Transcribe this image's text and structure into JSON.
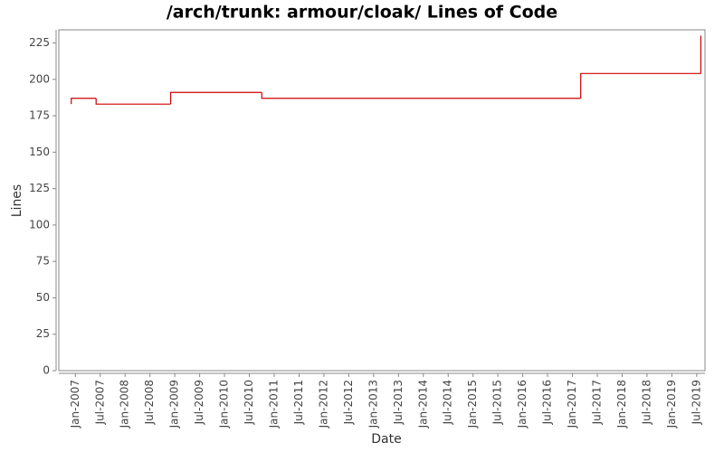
{
  "chart_data": {
    "type": "step-line",
    "title": "/arch/trunk: armour/cloak/ Lines of Code",
    "x_label": "Date",
    "y_label": "Lines",
    "x": [
      "2006-12",
      "2006-12",
      "2007-06",
      "2008-12",
      "2010-10",
      "2017-03",
      "2019-08"
    ],
    "series": [
      {
        "color": "#cc0000",
        "values": [
          183,
          187,
          183,
          191,
          187,
          204,
          230
        ]
      }
    ],
    "xlim": [
      "2006-09",
      "2019-09"
    ],
    "xticks": [
      {
        "value": "2007-01",
        "label": "Jan-2007"
      },
      {
        "value": "2007-07",
        "label": "Jul-2007"
      },
      {
        "value": "2008-01",
        "label": "Jan-2008"
      },
      {
        "value": "2008-07",
        "label": "Jul-2008"
      },
      {
        "value": "2009-01",
        "label": "Jan-2009"
      },
      {
        "value": "2009-07",
        "label": "Jul-2009"
      },
      {
        "value": "2010-01",
        "label": "Jan-2010"
      },
      {
        "value": "2010-07",
        "label": "Jul-2010"
      },
      {
        "value": "2011-01",
        "label": "Jan-2011"
      },
      {
        "value": "2011-07",
        "label": "Jul-2011"
      },
      {
        "value": "2012-01",
        "label": "Jan-2012"
      },
      {
        "value": "2012-07",
        "label": "Jul-2012"
      },
      {
        "value": "2013-01",
        "label": "Jan-2013"
      },
      {
        "value": "2013-07",
        "label": "Jul-2013"
      },
      {
        "value": "2014-01",
        "label": "Jan-2014"
      },
      {
        "value": "2014-07",
        "label": "Jul-2014"
      },
      {
        "value": "2015-01",
        "label": "Jan-2015"
      },
      {
        "value": "2015-07",
        "label": "Jul-2015"
      },
      {
        "value": "2016-01",
        "label": "Jan-2016"
      },
      {
        "value": "2016-07",
        "label": "Jul-2016"
      },
      {
        "value": "2017-01",
        "label": "Jan-2017"
      },
      {
        "value": "2017-07",
        "label": "Jul-2017"
      },
      {
        "value": "2018-01",
        "label": "Jan-2018"
      },
      {
        "value": "2018-07",
        "label": "Jul-2018"
      },
      {
        "value": "2019-01",
        "label": "Jan-2019"
      },
      {
        "value": "2019-07",
        "label": "Jul-2019"
      }
    ],
    "ylim": [
      0,
      234
    ],
    "yticks": [
      0,
      25,
      50,
      75,
      100,
      125,
      150,
      175,
      200,
      225
    ],
    "grid": false
  }
}
